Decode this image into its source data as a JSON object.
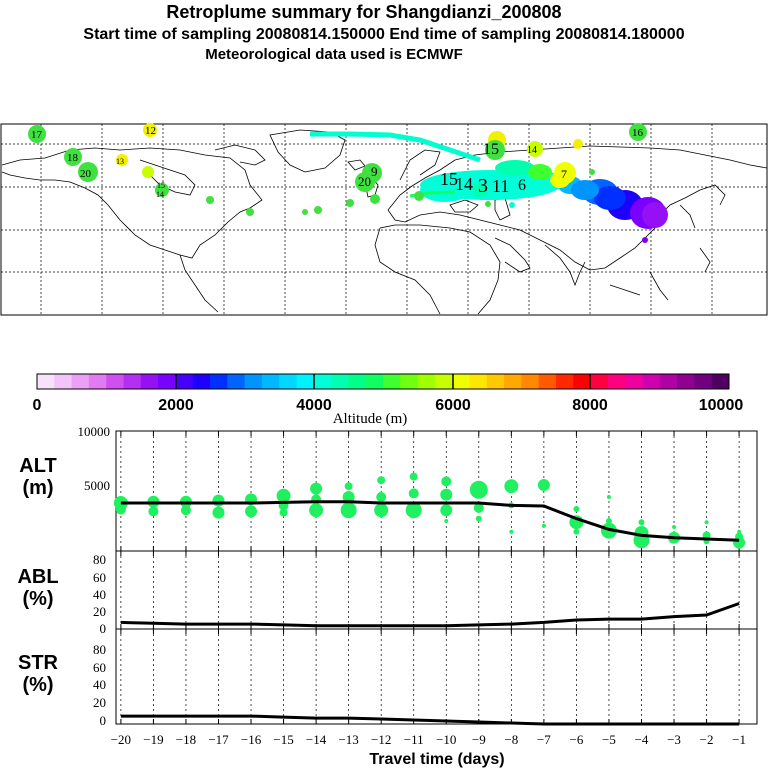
{
  "header": {
    "title": "Retroplume summary for Shangdianzi_200808",
    "sampling": "Start time of sampling 20080814.150000     End time of sampling 20080814.180000",
    "met": "Meteorological data used is ECMWF"
  },
  "colorbar": {
    "ticks": [
      "0",
      "2000",
      "4000",
      "6000",
      "8000",
      "10000"
    ],
    "label": "Altitude (m)",
    "colors": [
      "#f7e1fb",
      "#f3c4f9",
      "#ec9ff7",
      "#e27bf2",
      "#cf50ee",
      "#b52ff2",
      "#9610f6",
      "#7a00ff",
      "#4500ff",
      "#1e00ff",
      "#0030ff",
      "#0064ff",
      "#0094ff",
      "#00b8ff",
      "#00d8ff",
      "#00f2ff",
      "#00ffd8",
      "#00ffb0",
      "#00ff88",
      "#10ff60",
      "#40ff30",
      "#70ff10",
      "#a0ff00",
      "#c8ff00",
      "#f0ff00",
      "#ffe600",
      "#ffc800",
      "#ffa800",
      "#ff8800",
      "#ff5a00",
      "#ff2800",
      "#ff0000",
      "#ff0040",
      "#ff0080",
      "#f000a0",
      "#d000b0",
      "#b000a8",
      "#900090",
      "#700080",
      "#500060"
    ]
  },
  "map_labels": [
    {
      "text": "17",
      "c": "#40e040"
    },
    {
      "text": "12",
      "c": "#f0f000"
    },
    {
      "text": "18",
      "c": "#40e040"
    },
    {
      "text": "20",
      "c": "#40e040"
    },
    {
      "text": "13",
      "c": "#30e830"
    },
    {
      "text": "15",
      "c": "#30e830"
    },
    {
      "text": "14",
      "c": "#30e830"
    },
    {
      "text": "20",
      "c": "#40e040"
    },
    {
      "text": "9",
      "c": "#40e040"
    },
    {
      "text": "15",
      "c": "#00ffd0"
    },
    {
      "text": "14",
      "c": "#c8ff00"
    },
    {
      "text": "7",
      "c": "#f0f000"
    },
    {
      "text": "16",
      "c": "#40e040"
    },
    {
      "text": "15",
      "c": "#00ffd8"
    },
    {
      "text": "14",
      "c": "#00ffd8"
    },
    {
      "text": "3",
      "c": "#00ffd8"
    },
    {
      "text": "11",
      "c": "#00ffd8"
    },
    {
      "text": "6",
      "c": "#00ffd8"
    }
  ],
  "chart_data": [
    {
      "type": "scatter+line",
      "panel": "ALT",
      "ylabel": "ALT\n(m)",
      "ylim": [
        0,
        10000
      ],
      "yticks": [
        5000,
        10000
      ],
      "x_days": [
        -20,
        -19,
        -18,
        -17,
        -16,
        -15,
        -14,
        -13,
        -12,
        -11,
        -10,
        -9,
        -8,
        -7,
        -6,
        -5,
        -4,
        -3,
        -2,
        -1
      ],
      "mean_line": [
        4500,
        4500,
        4500,
        4500,
        4500,
        4550,
        4600,
        4600,
        4500,
        4500,
        4500,
        4500,
        4300,
        4250,
        3200,
        2300,
        1800,
        1600,
        1500,
        1400
      ],
      "marker_color": "#20f060",
      "markers": [
        {
          "x": -20,
          "y": 4500,
          "s": 7
        },
        {
          "x": -20,
          "y": 3950,
          "s": 5
        },
        {
          "x": -19,
          "y": 4600,
          "s": 6
        },
        {
          "x": -19,
          "y": 3800,
          "s": 5
        },
        {
          "x": -18,
          "y": 4600,
          "s": 6
        },
        {
          "x": -18,
          "y": 3900,
          "s": 5
        },
        {
          "x": -17,
          "y": 4700,
          "s": 6
        },
        {
          "x": -17,
          "y": 3700,
          "s": 6
        },
        {
          "x": -16,
          "y": 4800,
          "s": 6
        },
        {
          "x": -16,
          "y": 3800,
          "s": 6
        },
        {
          "x": -15,
          "y": 5100,
          "s": 7
        },
        {
          "x": -15,
          "y": 4300,
          "s": 5
        },
        {
          "x": -15,
          "y": 3700,
          "s": 4
        },
        {
          "x": -14,
          "y": 5700,
          "s": 6
        },
        {
          "x": -14,
          "y": 4800,
          "s": 5
        },
        {
          "x": -14,
          "y": 3900,
          "s": 7
        },
        {
          "x": -13,
          "y": 5900,
          "s": 4
        },
        {
          "x": -13,
          "y": 5000,
          "s": 6
        },
        {
          "x": -13,
          "y": 3900,
          "s": 8
        },
        {
          "x": -12,
          "y": 6400,
          "s": 4
        },
        {
          "x": -12,
          "y": 5000,
          "s": 5
        },
        {
          "x": -12,
          "y": 3900,
          "s": 7
        },
        {
          "x": -11,
          "y": 6700,
          "s": 4
        },
        {
          "x": -11,
          "y": 5300,
          "s": 5
        },
        {
          "x": -11,
          "y": 3900,
          "s": 8
        },
        {
          "x": -10,
          "y": 6300,
          "s": 5
        },
        {
          "x": -10,
          "y": 5200,
          "s": 6
        },
        {
          "x": -10,
          "y": 3900,
          "s": 6
        },
        {
          "x": -10,
          "y": 3000,
          "s": 2
        },
        {
          "x": -9,
          "y": 5600,
          "s": 9
        },
        {
          "x": -9,
          "y": 4100,
          "s": 5
        },
        {
          "x": -9,
          "y": 3200,
          "s": 3
        },
        {
          "x": -8,
          "y": 5900,
          "s": 7
        },
        {
          "x": -8,
          "y": 4300,
          "s": 3
        },
        {
          "x": -8,
          "y": 2100,
          "s": 2
        },
        {
          "x": -7,
          "y": 6000,
          "s": 6
        },
        {
          "x": -7,
          "y": 2600,
          "s": 2
        },
        {
          "x": -6,
          "y": 4000,
          "s": 3
        },
        {
          "x": -6,
          "y": 2900,
          "s": 7
        },
        {
          "x": -6,
          "y": 2100,
          "s": 3
        },
        {
          "x": -5,
          "y": 5000,
          "s": 2
        },
        {
          "x": -5,
          "y": 3000,
          "s": 3
        },
        {
          "x": -5,
          "y": 2200,
          "s": 8
        },
        {
          "x": -4,
          "y": 2900,
          "s": 3
        },
        {
          "x": -4,
          "y": 2000,
          "s": 7
        },
        {
          "x": -4,
          "y": 1400,
          "s": 8
        },
        {
          "x": -3,
          "y": 2500,
          "s": 2
        },
        {
          "x": -3,
          "y": 1600,
          "s": 6
        },
        {
          "x": -2,
          "y": 2900,
          "s": 2
        },
        {
          "x": -2,
          "y": 1800,
          "s": 4
        },
        {
          "x": -2,
          "y": 1300,
          "s": 3
        },
        {
          "x": -1,
          "y": 2100,
          "s": 2
        },
        {
          "x": -1,
          "y": 1700,
          "s": 4
        },
        {
          "x": -1,
          "y": 1200,
          "s": 6
        }
      ]
    },
    {
      "type": "line",
      "panel": "ABL",
      "ylabel": "ABL\n(%)",
      "ylim": [
        0,
        90
      ],
      "yticks": [
        0,
        20,
        40,
        60,
        80
      ],
      "x_days": [
        -20,
        -19,
        -18,
        -17,
        -16,
        -15,
        -14,
        -13,
        -12,
        -11,
        -10,
        -9,
        -8,
        -7,
        -6,
        -5,
        -4,
        -3,
        -2,
        -1
      ],
      "values": [
        8,
        7,
        6,
        6,
        6,
        5,
        4,
        4,
        4,
        4,
        4,
        5,
        6,
        8,
        11,
        12,
        12,
        15,
        17,
        31
      ]
    },
    {
      "type": "line",
      "panel": "STR",
      "ylabel": "STR\n(%)",
      "ylim": [
        0,
        90
      ],
      "yticks": [
        0,
        20,
        40,
        60,
        80
      ],
      "x_days": [
        -20,
        -19,
        -18,
        -17,
        -16,
        -15,
        -14,
        -13,
        -12,
        -11,
        -10,
        -9,
        -8,
        -7,
        -6,
        -5,
        -4,
        -3,
        -2,
        -1
      ],
      "values": [
        8,
        8,
        8,
        8,
        8,
        7,
        6,
        6,
        5,
        4,
        3,
        2,
        1,
        0,
        0,
        0,
        0,
        0,
        0,
        0
      ]
    }
  ],
  "xaxis": {
    "ticks": [
      "−20",
      "−19",
      "−18",
      "−17",
      "−16",
      "−15",
      "−14",
      "−13",
      "−12",
      "−11",
      "−10",
      "−9",
      "−8",
      "−7",
      "−6",
      "−5",
      "−4",
      "−3",
      "−2",
      "−1"
    ],
    "label": "Travel time (days)"
  },
  "ytick_labels": {
    "alt": [
      "5000",
      "10000"
    ],
    "pct": [
      "0",
      "20",
      "40",
      "60",
      "80"
    ]
  },
  "panel_labels": {
    "alt": [
      "ALT",
      "(m)"
    ],
    "abl": [
      "ABL",
      "(%)"
    ],
    "str": [
      "STR",
      "(%)"
    ]
  }
}
